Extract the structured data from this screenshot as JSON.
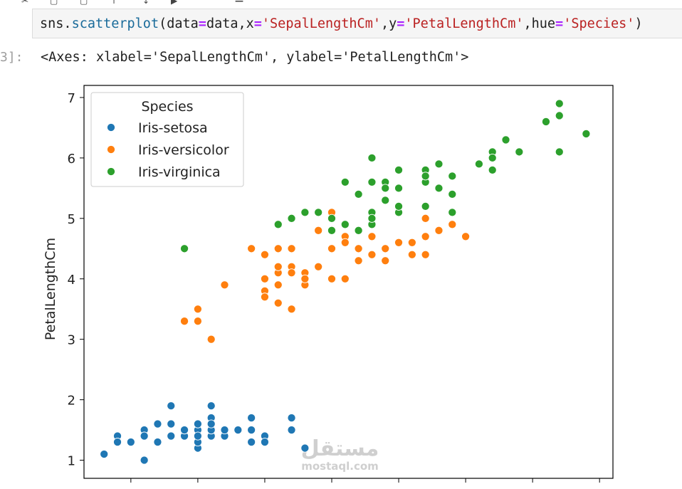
{
  "cell": {
    "code": [
      {
        "t": "sns.",
        "c": ""
      },
      {
        "t": "scatterplot",
        "c": "fn"
      },
      {
        "t": "(data",
        "c": ""
      },
      {
        "t": "=",
        "c": "op"
      },
      {
        "t": "data,x",
        "c": ""
      },
      {
        "t": "=",
        "c": "op"
      },
      {
        "t": "'SepalLengthCm'",
        "c": "str"
      },
      {
        "t": ",y",
        "c": ""
      },
      {
        "t": "=",
        "c": "op"
      },
      {
        "t": "'PetalLengthCm'",
        "c": "str"
      },
      {
        "t": ",hue",
        "c": ""
      },
      {
        "t": "=",
        "c": "op"
      },
      {
        "t": "'Species'",
        "c": "str"
      },
      {
        "t": ")",
        "c": ""
      }
    ],
    "output_prompt": "3]:",
    "output_text": "<Axes: xlabel='SepalLengthCm', ylabel='PetalLengthCm'>"
  },
  "watermark": {
    "arabic": "مستقل",
    "latin": "mostaql.com"
  },
  "chart_data": {
    "type": "scatter",
    "ylabel": "PetalLengthCm",
    "xlabel": "",
    "xlim": [
      4.15,
      8.1
    ],
    "ylim": [
      0.7,
      7.2
    ],
    "yticks": [
      1,
      2,
      3,
      4,
      5,
      6,
      7
    ],
    "xticks": [
      4.5,
      5.0,
      5.5,
      6.0,
      6.5,
      7.0,
      7.5,
      8.0
    ],
    "legend": {
      "title": "Species",
      "placement": "top-left"
    },
    "series": [
      {
        "name": "Iris-setosa",
        "color": "#1f77b4",
        "points": [
          [
            5.1,
            1.4
          ],
          [
            4.9,
            1.4
          ],
          [
            4.7,
            1.3
          ],
          [
            4.6,
            1.5
          ],
          [
            5.0,
            1.4
          ],
          [
            5.4,
            1.7
          ],
          [
            4.6,
            1.4
          ],
          [
            5.0,
            1.5
          ],
          [
            4.4,
            1.4
          ],
          [
            4.9,
            1.5
          ],
          [
            5.4,
            1.5
          ],
          [
            4.8,
            1.6
          ],
          [
            4.8,
            1.4
          ],
          [
            4.3,
            1.1
          ],
          [
            5.8,
            1.2
          ],
          [
            5.7,
            1.5
          ],
          [
            5.4,
            1.3
          ],
          [
            5.1,
            1.4
          ],
          [
            5.7,
            1.7
          ],
          [
            5.1,
            1.5
          ],
          [
            5.4,
            1.7
          ],
          [
            5.1,
            1.5
          ],
          [
            4.6,
            1.0
          ],
          [
            5.1,
            1.7
          ],
          [
            4.8,
            1.9
          ],
          [
            5.0,
            1.6
          ],
          [
            5.0,
            1.6
          ],
          [
            5.2,
            1.5
          ],
          [
            5.2,
            1.4
          ],
          [
            4.7,
            1.6
          ],
          [
            4.8,
            1.6
          ],
          [
            5.4,
            1.5
          ],
          [
            5.2,
            1.5
          ],
          [
            5.5,
            1.4
          ],
          [
            4.9,
            1.5
          ],
          [
            5.0,
            1.2
          ],
          [
            5.5,
            1.3
          ],
          [
            4.9,
            1.5
          ],
          [
            4.4,
            1.3
          ],
          [
            5.1,
            1.5
          ],
          [
            5.0,
            1.3
          ],
          [
            4.5,
            1.3
          ],
          [
            4.4,
            1.3
          ],
          [
            5.0,
            1.6
          ],
          [
            5.1,
            1.9
          ],
          [
            4.8,
            1.4
          ],
          [
            5.1,
            1.6
          ],
          [
            4.6,
            1.4
          ],
          [
            5.3,
            1.5
          ],
          [
            5.0,
            1.4
          ]
        ]
      },
      {
        "name": "Iris-versicolor",
        "color": "#ff7f0e",
        "points": [
          [
            7.0,
            4.7
          ],
          [
            6.4,
            4.5
          ],
          [
            6.9,
            4.9
          ],
          [
            5.5,
            4.0
          ],
          [
            6.5,
            4.6
          ],
          [
            5.7,
            4.5
          ],
          [
            6.3,
            4.7
          ],
          [
            4.9,
            3.3
          ],
          [
            6.6,
            4.6
          ],
          [
            5.2,
            3.9
          ],
          [
            5.0,
            3.5
          ],
          [
            5.9,
            4.2
          ],
          [
            6.0,
            4.0
          ],
          [
            6.1,
            4.7
          ],
          [
            5.6,
            3.6
          ],
          [
            6.7,
            4.4
          ],
          [
            5.6,
            4.5
          ],
          [
            5.8,
            4.1
          ],
          [
            6.2,
            4.5
          ],
          [
            5.6,
            3.9
          ],
          [
            5.9,
            4.8
          ],
          [
            6.1,
            4.0
          ],
          [
            6.3,
            4.9
          ],
          [
            6.1,
            4.7
          ],
          [
            6.4,
            4.3
          ],
          [
            6.6,
            4.4
          ],
          [
            6.8,
            4.8
          ],
          [
            6.7,
            5.0
          ],
          [
            6.0,
            4.5
          ],
          [
            5.7,
            3.5
          ],
          [
            5.5,
            3.8
          ],
          [
            5.5,
            3.7
          ],
          [
            5.8,
            3.9
          ],
          [
            6.0,
            5.1
          ],
          [
            5.4,
            4.5
          ],
          [
            6.0,
            4.5
          ],
          [
            6.7,
            4.7
          ],
          [
            6.3,
            4.4
          ],
          [
            5.6,
            4.1
          ],
          [
            5.5,
            4.0
          ],
          [
            5.5,
            4.4
          ],
          [
            6.1,
            4.6
          ],
          [
            5.8,
            4.0
          ],
          [
            5.0,
            3.3
          ],
          [
            5.6,
            4.2
          ],
          [
            5.7,
            4.2
          ],
          [
            5.7,
            4.2
          ],
          [
            6.2,
            4.3
          ],
          [
            5.1,
            3.0
          ],
          [
            5.7,
            4.1
          ]
        ]
      },
      {
        "name": "Iris-virginica",
        "color": "#2ca02c",
        "points": [
          [
            6.3,
            6.0
          ],
          [
            5.8,
            5.1
          ],
          [
            7.1,
            5.9
          ],
          [
            6.3,
            5.6
          ],
          [
            6.5,
            5.8
          ],
          [
            7.6,
            6.6
          ],
          [
            4.9,
            4.5
          ],
          [
            7.3,
            6.3
          ],
          [
            6.7,
            5.8
          ],
          [
            7.2,
            6.1
          ],
          [
            6.5,
            5.1
          ],
          [
            6.4,
            5.3
          ],
          [
            6.8,
            5.5
          ],
          [
            5.7,
            5.0
          ],
          [
            5.8,
            5.1
          ],
          [
            6.4,
            5.3
          ],
          [
            6.5,
            5.5
          ],
          [
            7.7,
            6.7
          ],
          [
            7.7,
            6.9
          ],
          [
            6.0,
            5.0
          ],
          [
            6.9,
            5.7
          ],
          [
            5.6,
            4.9
          ],
          [
            7.7,
            6.7
          ],
          [
            6.3,
            4.9
          ],
          [
            6.7,
            5.7
          ],
          [
            7.2,
            6.0
          ],
          [
            6.2,
            4.8
          ],
          [
            6.1,
            4.9
          ],
          [
            6.4,
            5.6
          ],
          [
            7.2,
            5.8
          ],
          [
            7.4,
            6.1
          ],
          [
            7.9,
            6.4
          ],
          [
            6.4,
            5.6
          ],
          [
            6.3,
            5.1
          ],
          [
            6.1,
            5.6
          ],
          [
            7.7,
            6.1
          ],
          [
            6.3,
            5.6
          ],
          [
            6.4,
            5.5
          ],
          [
            6.0,
            4.8
          ],
          [
            6.9,
            5.4
          ],
          [
            6.7,
            5.6
          ],
          [
            6.9,
            5.1
          ],
          [
            5.8,
            5.1
          ],
          [
            6.8,
            5.9
          ],
          [
            6.7,
            5.7
          ],
          [
            6.7,
            5.2
          ],
          [
            6.3,
            5.0
          ],
          [
            6.5,
            5.2
          ],
          [
            6.2,
            5.4
          ],
          [
            5.9,
            5.1
          ]
        ]
      }
    ]
  }
}
